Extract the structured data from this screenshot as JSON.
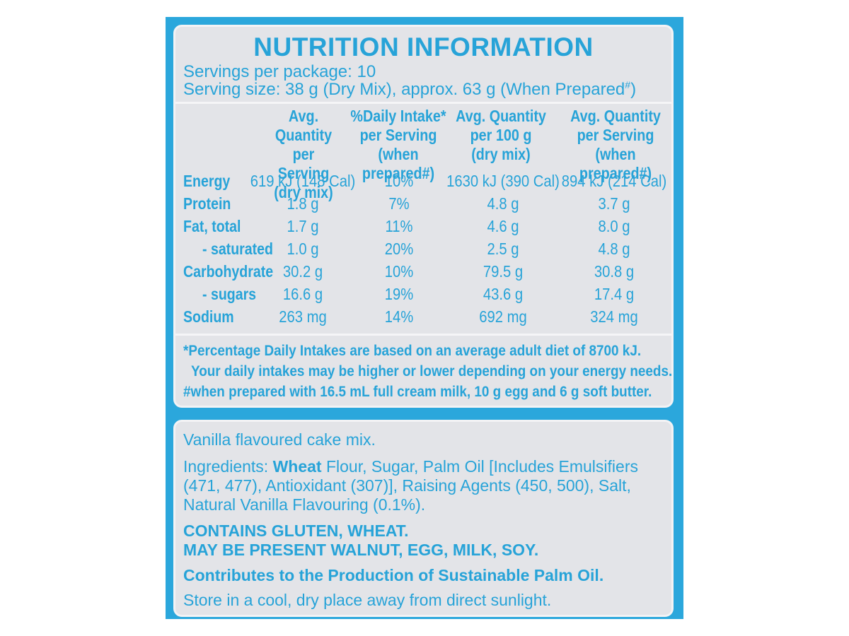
{
  "nutrition": {
    "title": "NUTRITION INFORMATION",
    "servings_label": "Servings per package: 10",
    "serving_size_label": "Serving size: 38 g (Dry Mix), approx. 63 g (When Prepared",
    "serving_size_mark": "#",
    "serving_size_end": ")",
    "columns": [
      {
        "line1": "Avg. Quantity",
        "line2": "per Serving",
        "line3": "(dry mix)"
      },
      {
        "line1": "%Daily Intake*",
        "line2": "per Serving",
        "line3": "(when prepared#)"
      },
      {
        "line1": "Avg. Quantity",
        "line2": "per 100 g",
        "line3": "(dry mix)"
      },
      {
        "line1": "Avg. Quantity",
        "line2": "per Serving",
        "line3": "(when prepared#)"
      }
    ],
    "rows": [
      {
        "name": "Energy",
        "v1": "619 kJ (148 Cal)",
        "v2": "10%",
        "v3": "1630 kJ (390 Cal)",
        "v4": "894 kJ (214 Cal)"
      },
      {
        "name": "Protein",
        "v1": "1.8 g",
        "v2": "7%",
        "v3": "4.8 g",
        "v4": "3.7 g"
      },
      {
        "name": "Fat, total",
        "v1": "1.7 g",
        "v2": "11%",
        "v3": "4.6 g",
        "v4": "8.0 g"
      },
      {
        "name": "- saturated",
        "v1": "1.0 g",
        "v2": "20%",
        "v3": "2.5 g",
        "v4": "4.8 g"
      },
      {
        "name": "Carbohydrate",
        "v1": "30.2 g",
        "v2": "10%",
        "v3": "79.5 g",
        "v4": "30.8 g"
      },
      {
        "name": "- sugars",
        "v1": "16.6 g",
        "v2": "19%",
        "v3": "43.6 g",
        "v4": "17.4 g"
      },
      {
        "name": "Sodium",
        "v1": "263 mg",
        "v2": "14%",
        "v3": "692 mg",
        "v4": "324 mg"
      }
    ],
    "footnote1": "*Percentage Daily Intakes are based on an average adult diet of 8700 kJ.",
    "footnote2": "Your daily intakes may be higher or lower depending on your energy needs.",
    "footnote3": "#when prepared with 16.5 mL full cream milk, 10 g egg and 6 g soft butter."
  },
  "ingredients": {
    "product": "Vanilla flavoured cake mix.",
    "prefix": "Ingredients: ",
    "wheat": "Wheat",
    "line1_rest": " Flour, Sugar, Palm Oil [Includes Emulsifiers",
    "line2": "(471, 477), Antioxidant (307)], Raising Agents (450, 500), Salt,",
    "line3": "Natural Vanilla Flavouring (0.1%).",
    "allergen1": "CONTAINS GLUTEN, WHEAT.",
    "allergen2": "MAY BE PRESENT WALNUT, EGG, MILK, SOY.",
    "palm": "Contributes to the Production of Sustainable Palm Oil.",
    "storage": "Store in a cool, dry place away from direct sunlight."
  },
  "colors": {
    "accent": "#27a3d8",
    "panel": "#2ba7dc",
    "label_bg": "#e3e4e8"
  }
}
